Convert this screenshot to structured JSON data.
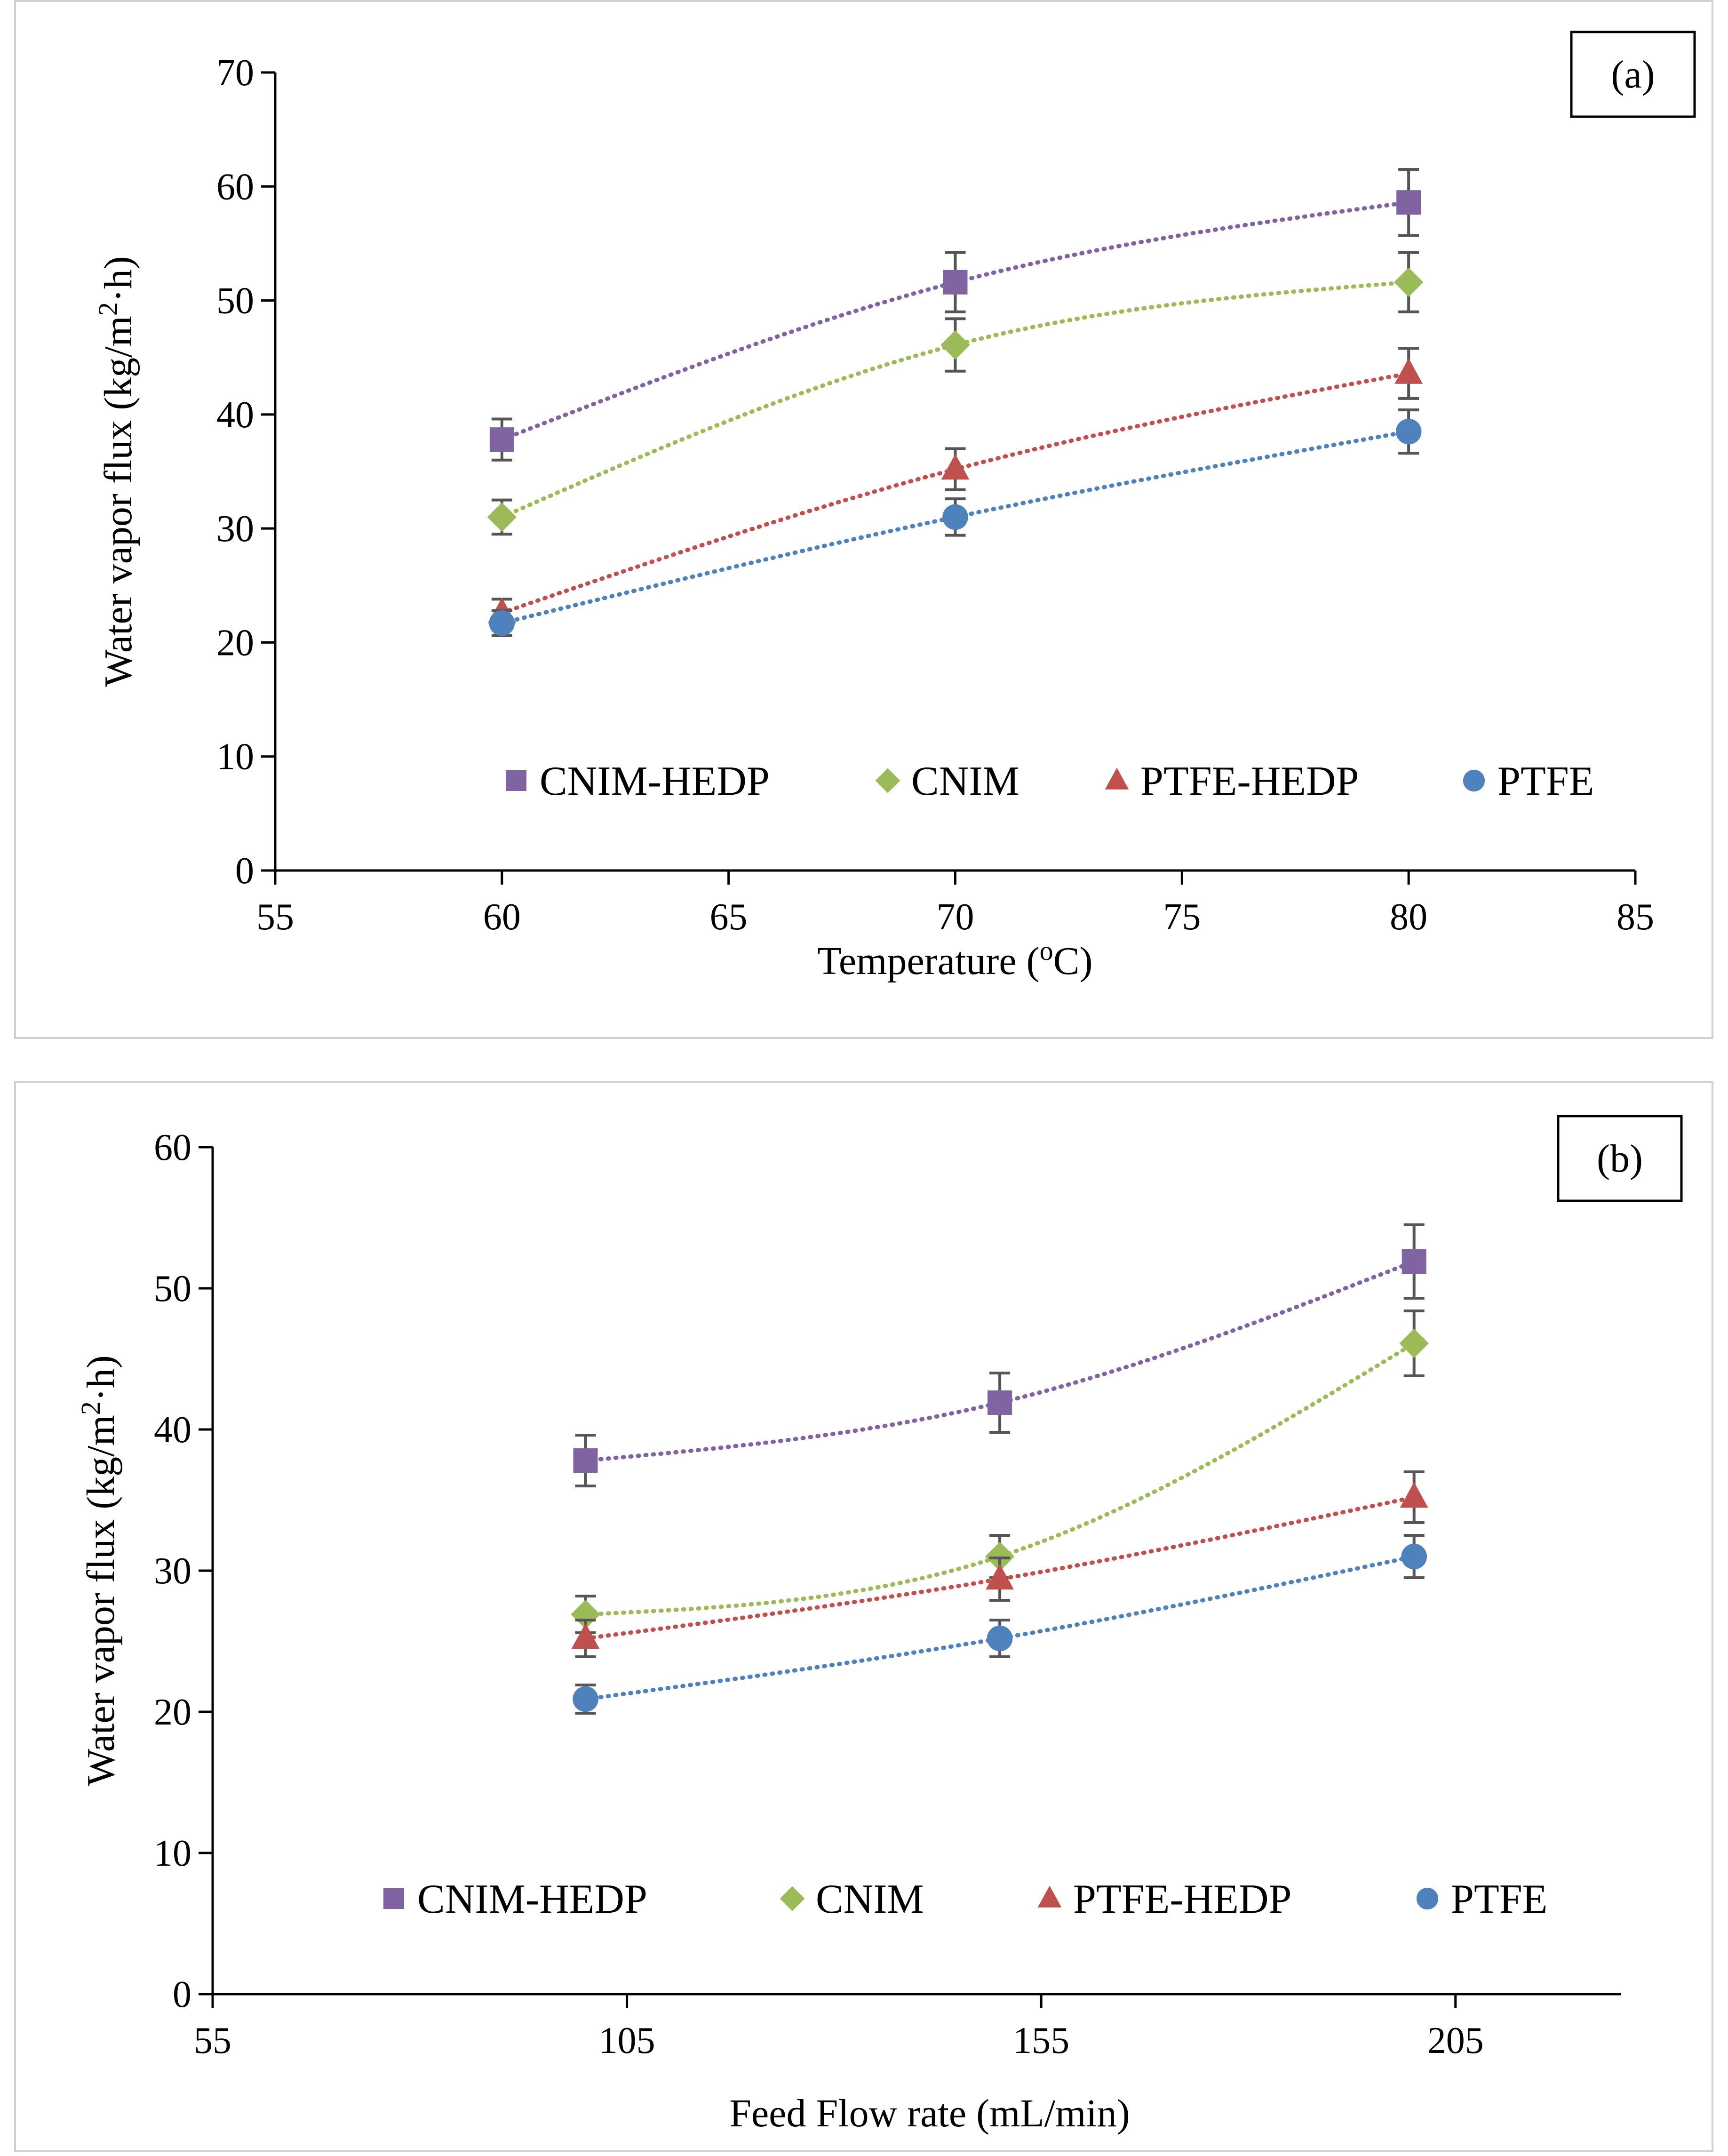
{
  "chart_data": [
    {
      "type": "line",
      "panel_label": "(a)",
      "xlabel_main": "Temperature (",
      "xlabel_sup": "o",
      "xlabel_end": "C)",
      "ylabel_main": "Water vapor flux (kg/m",
      "ylabel_sup": "2",
      "ylabel_end": "·h)",
      "xlim": [
        55,
        85
      ],
      "ylim": [
        0,
        70
      ],
      "xticks": [
        55,
        60,
        65,
        70,
        75,
        80,
        85
      ],
      "yticks": [
        0,
        10,
        20,
        30,
        40,
        50,
        60,
        70
      ],
      "x": [
        60,
        70,
        80
      ],
      "series": [
        {
          "name": "CNIM-HEDP",
          "marker": "square",
          "color": "#8064A2",
          "values": [
            37.8,
            51.6,
            58.6
          ],
          "errors": [
            1.8,
            2.6,
            2.9
          ]
        },
        {
          "name": "CNIM",
          "marker": "diamond",
          "color": "#9BBB59",
          "values": [
            31.0,
            46.1,
            51.6
          ],
          "errors": [
            1.5,
            2.3,
            2.6
          ]
        },
        {
          "name": "PTFE-HEDP",
          "marker": "triangle",
          "color": "#C0504D",
          "values": [
            22.6,
            35.2,
            43.6
          ],
          "errors": [
            1.2,
            1.8,
            2.2
          ]
        },
        {
          "name": "PTFE",
          "marker": "circle",
          "color": "#4F81BD",
          "values": [
            21.7,
            31.0,
            38.5
          ],
          "errors": [
            1.1,
            1.6,
            1.9
          ]
        }
      ],
      "legend_position": "bottom-inside"
    },
    {
      "type": "line",
      "panel_label": "(b)",
      "xlabel_main": "Feed Flow rate (mL/min)",
      "xlabel_sup": "",
      "xlabel_end": "",
      "ylabel_main": "Water vapor flux (kg/m",
      "ylabel_sup": "2",
      "ylabel_end": "·h)",
      "xlim": [
        55,
        225
      ],
      "ylim": [
        0,
        60
      ],
      "xticks": [
        55,
        105,
        155,
        205
      ],
      "yticks": [
        0,
        10,
        20,
        30,
        40,
        50,
        60
      ],
      "x": [
        100,
        150,
        200
      ],
      "series": [
        {
          "name": "CNIM-HEDP",
          "marker": "square",
          "color": "#8064A2",
          "values": [
            37.8,
            41.9,
            51.9
          ],
          "errors": [
            1.8,
            2.1,
            2.6
          ]
        },
        {
          "name": "CNIM",
          "marker": "diamond",
          "color": "#9BBB59",
          "values": [
            26.9,
            31.0,
            46.1
          ],
          "errors": [
            1.3,
            1.5,
            2.3
          ]
        },
        {
          "name": "PTFE-HEDP",
          "marker": "triangle",
          "color": "#C0504D",
          "values": [
            25.2,
            29.4,
            35.2
          ],
          "errors": [
            1.3,
            1.5,
            1.8
          ]
        },
        {
          "name": "PTFE",
          "marker": "circle",
          "color": "#4F81BD",
          "values": [
            20.9,
            25.2,
            31.0
          ],
          "errors": [
            1.0,
            1.3,
            1.5
          ]
        }
      ],
      "legend_position": "bottom-inside"
    }
  ]
}
